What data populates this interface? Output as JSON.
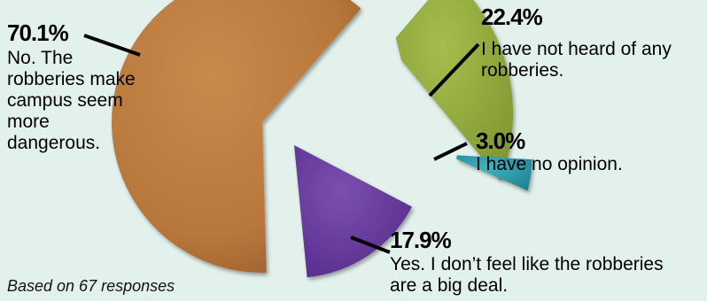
{
  "chart_data": {
    "type": "pie",
    "title": "",
    "slices": [
      {
        "label": "No. The robberies make campus seem more dangerous.",
        "value": 70.1,
        "value_label": "70.1%",
        "color": "#b9783d"
      },
      {
        "label": "I have not heard of any robberies.",
        "value": 22.4,
        "value_label": "22.4%",
        "color": "#91a83c"
      },
      {
        "label": "I have no opinion.",
        "value": 3.0,
        "value_label": "3.0%",
        "color": "#2d9aa6"
      },
      {
        "label": "Yes. I don’t feel like the robberies are a big deal.",
        "value": 17.9,
        "value_label": "17.9%",
        "color": "#6a3c9e"
      }
    ],
    "note": "Based on 67 responses"
  }
}
